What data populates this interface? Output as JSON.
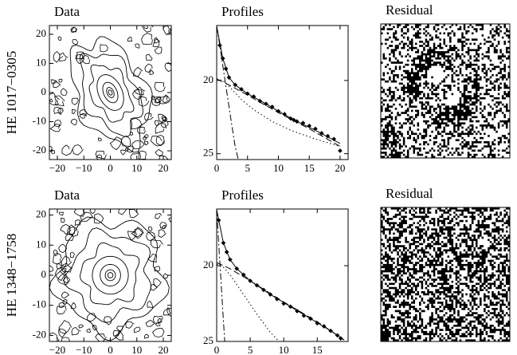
{
  "chart_data": [
    {
      "type": "contour",
      "title": "Data",
      "ylabel": "HE 1017−0305",
      "xlim": [
        -23,
        23
      ],
      "ylim": [
        -23,
        23
      ],
      "xticks": [
        {
          "value": -20,
          "label": "−20"
        },
        {
          "value": -10,
          "label": "−10"
        },
        0,
        10,
        20
      ],
      "yticks": [
        {
          "value": -20,
          "label": "-20"
        },
        {
          "value": -10,
          "label": "-10"
        },
        0,
        10,
        20
      ],
      "tilt": 25,
      "axis_ratio": 0.62
    },
    {
      "type": "profile",
      "title": "Profiles",
      "xlim": [
        0,
        21.3
      ],
      "ylim": [
        16.25,
        25.4
      ],
      "y_inverted": true,
      "xticks": [
        0,
        5,
        10,
        15,
        20
      ],
      "yticks": [
        20,
        25
      ],
      "series": [
        {
          "style": "points",
          "x": [
            0.5,
            1,
            1.5,
            2,
            3,
            4,
            5,
            6,
            7,
            8,
            9,
            10,
            11,
            12,
            12.5,
            13,
            14,
            15,
            16,
            17,
            18,
            19,
            20
          ],
          "values": [
            17.6,
            18.5,
            19.2,
            19.8,
            20.3,
            20.6,
            20.9,
            21.1,
            21.4,
            21.6,
            21.8,
            22.1,
            22.3,
            22.6,
            22.7,
            22.8,
            22.9,
            23.1,
            23.3,
            23.6,
            23.8,
            24.0,
            24.8
          ]
        },
        {
          "style": "solid",
          "x": [
            0,
            1,
            2,
            3,
            5,
            8,
            10,
            13,
            16,
            20
          ],
          "values": [
            16.3,
            18.5,
            19.8,
            20.3,
            20.9,
            21.6,
            22.1,
            22.8,
            23.4,
            24.3
          ]
        },
        {
          "style": "dashed",
          "x": [
            0,
            2,
            5,
            10,
            15,
            20
          ],
          "values": [
            19.9,
            20.3,
            21.0,
            22.2,
            23.3,
            24.5
          ]
        },
        {
          "style": "dotted",
          "x": [
            0,
            1,
            2,
            4,
            6,
            9,
            12,
            16,
            20
          ],
          "values": [
            19.9,
            20.0,
            20.4,
            21.3,
            22.0,
            22.8,
            23.4,
            24.0,
            24.5
          ]
        },
        {
          "style": "dashdot",
          "x": [
            0,
            0.5,
            1,
            1.5,
            2,
            2.5,
            3,
            3.5
          ],
          "values": [
            16.3,
            17.6,
            19.0,
            20.4,
            21.8,
            23.2,
            24.5,
            25.4
          ]
        }
      ]
    },
    {
      "type": "image",
      "title": "Residual",
      "pattern": "structured"
    },
    {
      "type": "contour",
      "title": "Data",
      "ylabel": "HE 1348−1758",
      "xlim": [
        -23,
        23
      ],
      "ylim": [
        -22,
        22
      ],
      "xticks": [
        {
          "value": -20,
          "label": "−20"
        },
        {
          "value": -10,
          "label": "−10"
        },
        0,
        10,
        20
      ],
      "yticks": [
        {
          "value": -20,
          "label": "-20"
        },
        {
          "value": -10,
          "label": "-10"
        },
        0,
        10,
        20
      ],
      "tilt": 0,
      "axis_ratio": 0.95
    },
    {
      "type": "profile",
      "title": "Profiles",
      "xlim": [
        0,
        19.6
      ],
      "ylim": [
        16.26,
        25
      ],
      "y_inverted": true,
      "xticks": [
        0,
        5,
        10,
        15
      ],
      "yticks": [
        20,
        25
      ],
      "series": [
        {
          "style": "points",
          "x": [
            0.3,
            1,
            1.5,
            2,
            3,
            4,
            5,
            6,
            7,
            8,
            9,
            10,
            11,
            12,
            13,
            14,
            15,
            16,
            17,
            18,
            18.5
          ],
          "values": [
            17.0,
            18.5,
            19.1,
            19.6,
            20.2,
            20.6,
            21.0,
            21.3,
            21.6,
            21.9,
            22.2,
            22.5,
            22.7,
            23.0,
            23.3,
            23.5,
            23.8,
            24.0,
            24.3,
            24.6,
            24.8
          ]
        },
        {
          "style": "solid",
          "x": [
            0,
            1,
            2,
            3,
            5,
            8,
            11,
            14,
            17,
            19
          ],
          "values": [
            16.3,
            18.5,
            19.6,
            20.2,
            21.0,
            21.9,
            22.7,
            23.5,
            24.3,
            24.9
          ]
        },
        {
          "style": "dashed",
          "x": [
            0,
            2,
            5,
            10,
            15,
            19
          ],
          "values": [
            19.8,
            20.2,
            21.0,
            22.4,
            23.7,
            24.9
          ]
        },
        {
          "style": "dotted",
          "x": [
            0,
            1,
            2,
            4,
            6,
            8,
            9.3
          ],
          "values": [
            19.9,
            20.1,
            20.6,
            21.9,
            23.2,
            24.4,
            25.0
          ]
        },
        {
          "style": "dashdot",
          "x": [
            0,
            0.3,
            0.6,
            0.9,
            1.2
          ],
          "values": [
            16.3,
            18.5,
            20.7,
            22.9,
            25.0
          ]
        }
      ]
    },
    {
      "type": "image",
      "title": "Residual",
      "pattern": "noise"
    }
  ]
}
